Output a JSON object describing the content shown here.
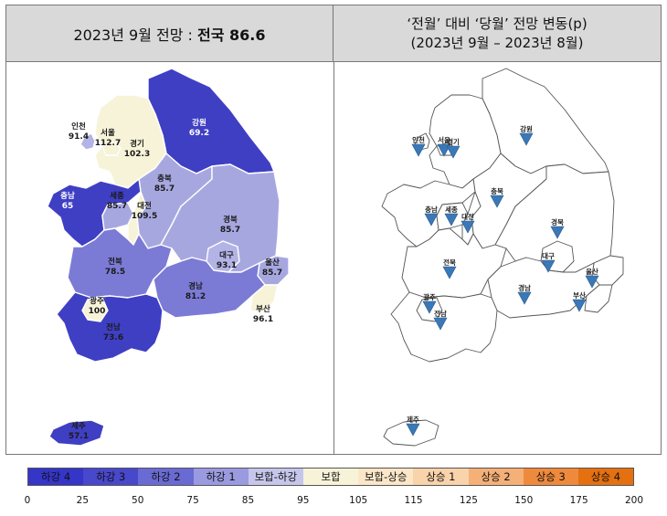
{
  "left_header": {
    "text": "2023년 9월 전망 : ",
    "bold": "전국 86.6"
  },
  "right_header": {
    "line1": "‘전월’ 대비 ‘당월’ 전망 변동(p)",
    "line2": "(2023년 9월 – 2023년 8월)"
  },
  "regions": [
    {
      "name": "인천",
      "value": "91.4",
      "color": "#b3b3e6"
    },
    {
      "name": "서울",
      "value": "112.7",
      "color": "#f7f3d8"
    },
    {
      "name": "경기",
      "value": "102.3",
      "color": "#f7f3d8"
    },
    {
      "name": "강원",
      "value": "69.2",
      "color": "#3f3fc4"
    },
    {
      "name": "충북",
      "value": "85.7",
      "color": "#a7a7e0"
    },
    {
      "name": "충남",
      "value": "65",
      "color": "#3f3fc4"
    },
    {
      "name": "세종",
      "value": "85.7",
      "color": "#a7a7e0"
    },
    {
      "name": "대전",
      "value": "109.5",
      "color": "#f7f3d8"
    },
    {
      "name": "경북",
      "value": "85.7",
      "color": "#a7a7e0"
    },
    {
      "name": "대구",
      "value": "93.1",
      "color": "#b3b3e6"
    },
    {
      "name": "울산",
      "value": "85.7",
      "color": "#a7a7e0"
    },
    {
      "name": "전북",
      "value": "78.5",
      "color": "#7b7bd6"
    },
    {
      "name": "경남",
      "value": "81.2",
      "color": "#7b7bd6"
    },
    {
      "name": "광주",
      "value": "100",
      "color": "#f7f3d8"
    },
    {
      "name": "부산",
      "value": "96.1",
      "color": "#f7f3d8"
    },
    {
      "name": "전남",
      "value": "73.6",
      "color": "#3f3fc4"
    },
    {
      "name": "제주",
      "value": "57.1",
      "color": "#3f3fc4"
    }
  ],
  "change_labels": [
    "인천",
    "서울",
    "경기",
    "강원",
    "충남",
    "세종",
    "대전",
    "충북",
    "경북",
    "대구",
    "전북",
    "경남",
    "울산",
    "부산",
    "광주",
    "전남",
    "제주"
  ],
  "legend": {
    "items": [
      {
        "label": "하강 4",
        "color": "#3535c8"
      },
      {
        "label": "하강 3",
        "color": "#4848cc"
      },
      {
        "label": "하강 2",
        "color": "#6a6ad4"
      },
      {
        "label": "하강 1",
        "color": "#9a9ae0"
      },
      {
        "label": "보합-하강",
        "color": "#c6c6ec"
      },
      {
        "label": "보합",
        "color": "#f7f3d8"
      },
      {
        "label": "보합-상승",
        "color": "#fbe6c8"
      },
      {
        "label": "상승 1",
        "color": "#f9d3aa"
      },
      {
        "label": "상승 2",
        "color": "#f5b078"
      },
      {
        "label": "상승 3",
        "color": "#ef8a3c"
      },
      {
        "label": "상승 4",
        "color": "#e57010"
      }
    ],
    "ticks": [
      "0",
      "25",
      "50",
      "75",
      "85",
      "95",
      "105",
      "115",
      "125",
      "150",
      "175",
      "200"
    ]
  }
}
